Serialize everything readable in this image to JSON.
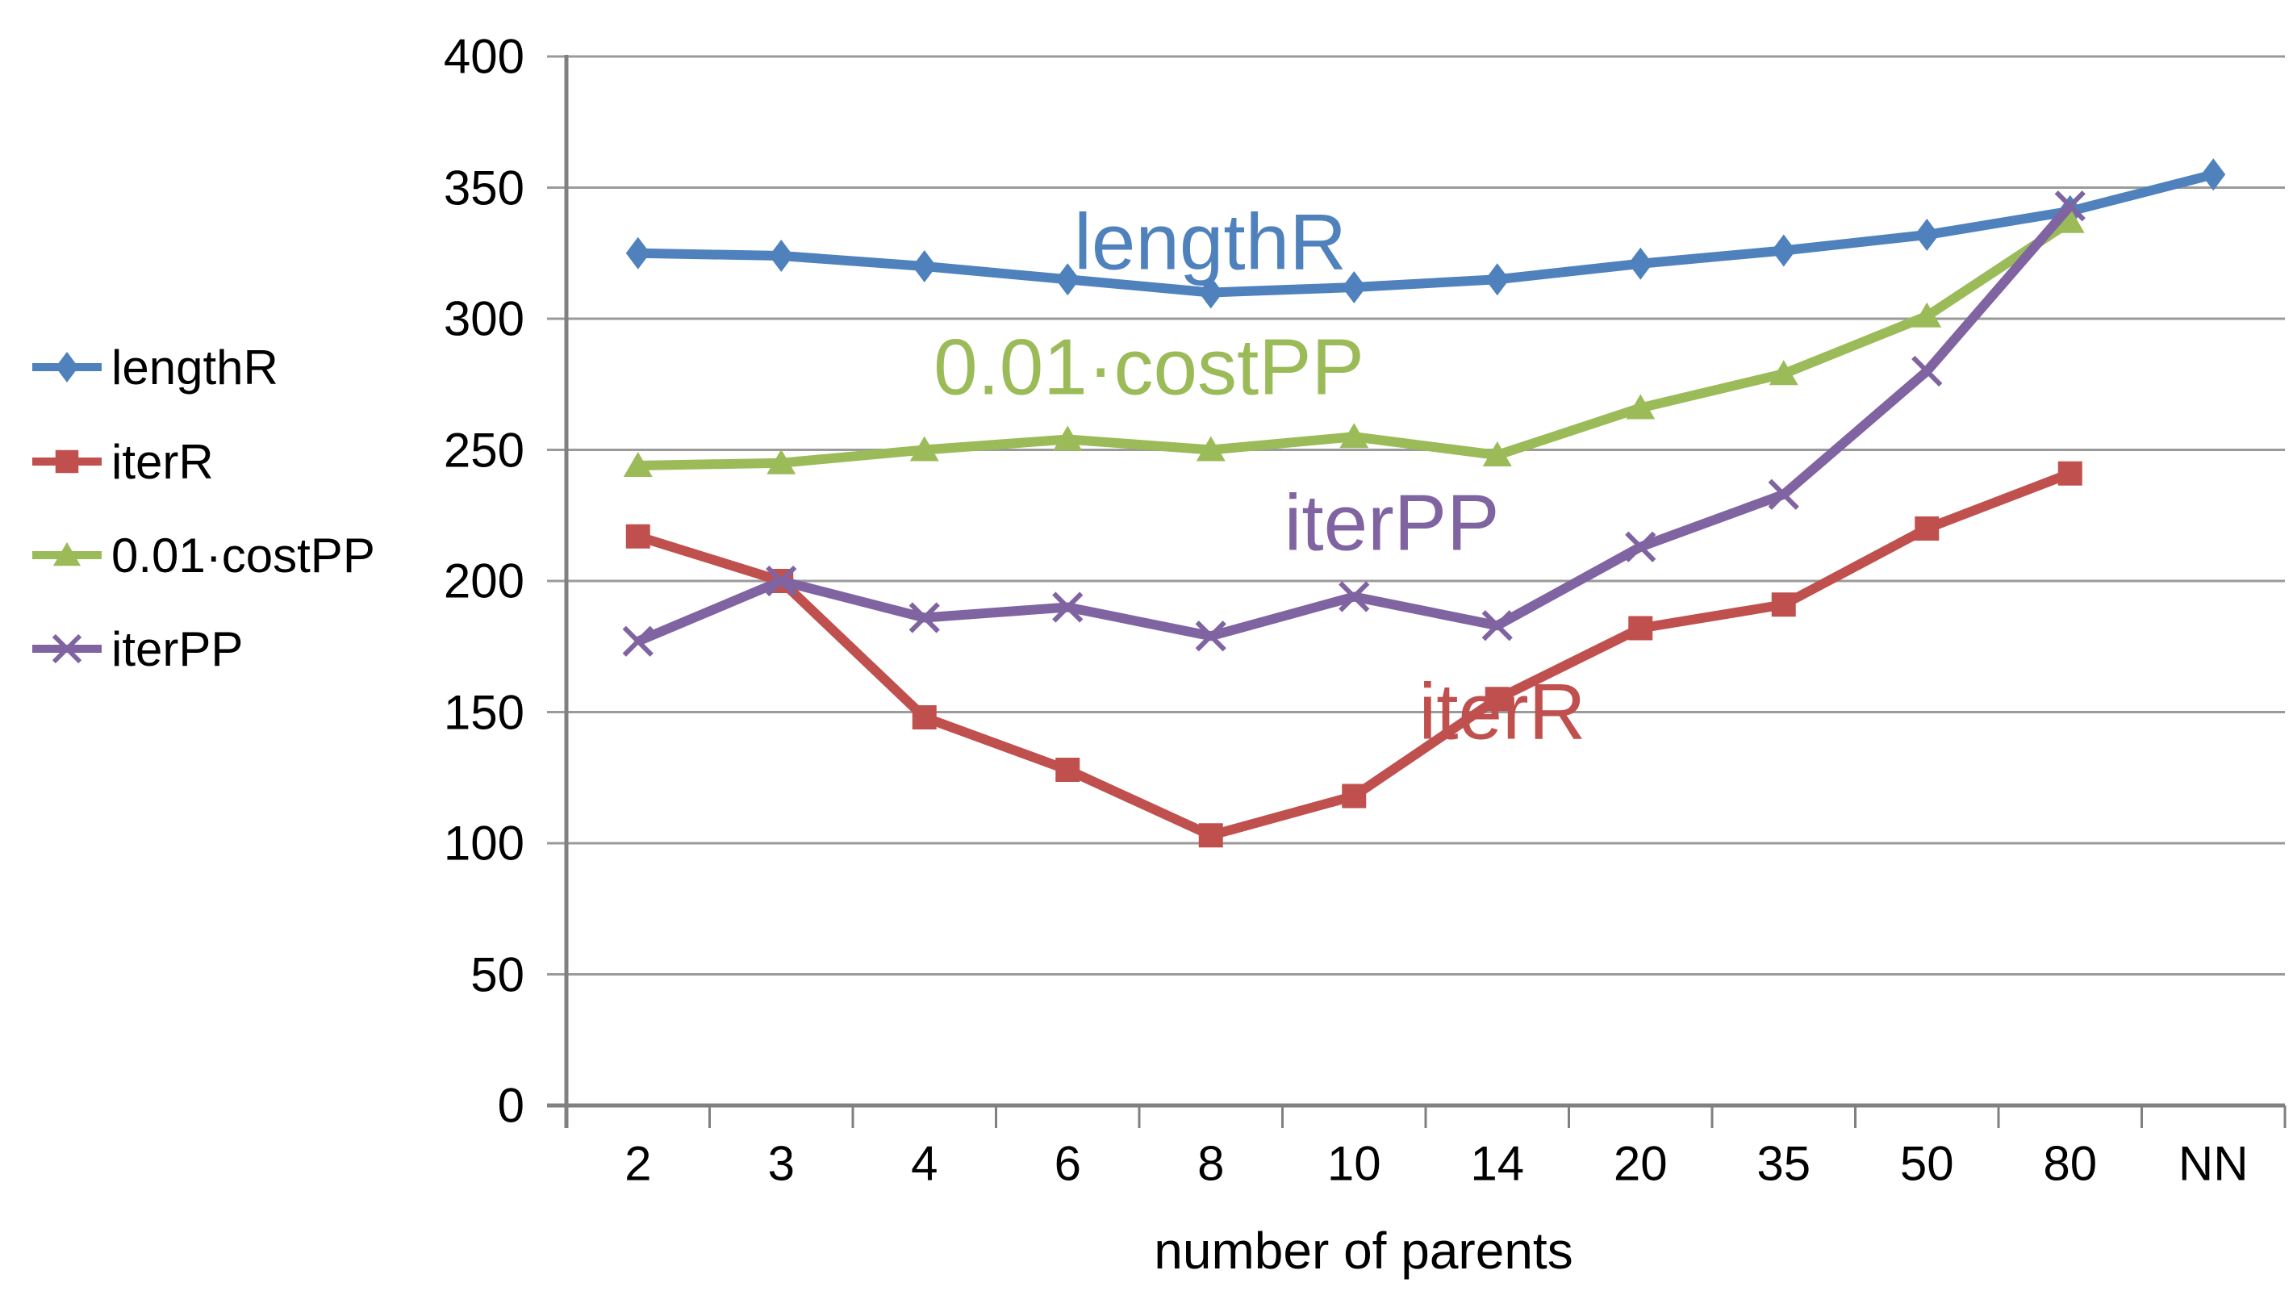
{
  "page": {
    "background": "#ffffff"
  },
  "chart_data": {
    "type": "line",
    "title": "",
    "xlabel": "number of parents",
    "ylabel": "",
    "ylim": [
      0,
      400
    ],
    "ytick_step": 50,
    "y_tick_labels": [
      "400",
      "350",
      "300",
      "250",
      "200",
      "150",
      "100",
      "50",
      "0"
    ],
    "categories": [
      "2",
      "3",
      "4",
      "6",
      "8",
      "10",
      "14",
      "20",
      "35",
      "50",
      "80",
      "NN"
    ],
    "grid": true,
    "legend_position": "left",
    "axis_color": "#808080",
    "grid_color": "#9a9a9a",
    "text_color": "#000000",
    "series": [
      {
        "name": "lengthR",
        "color": "#4F81BD",
        "marker": "diamond",
        "values": [
          325,
          324,
          320,
          315,
          310,
          312,
          315,
          321,
          326,
          332,
          341,
          355
        ]
      },
      {
        "name": "iterR",
        "color": "#C0504D",
        "marker": "square",
        "values": [
          217,
          200,
          148,
          128,
          103,
          118,
          155,
          182,
          191,
          220,
          241,
          null
        ]
      },
      {
        "name": "0.01·costPP",
        "color": "#9BBB59",
        "marker": "triangle",
        "values": [
          244,
          245,
          250,
          254,
          250,
          255,
          248,
          266,
          279,
          301,
          337,
          null
        ]
      },
      {
        "name": "iterPP",
        "color": "#8064A2",
        "marker": "x",
        "values": [
          177,
          200,
          186,
          190,
          179,
          194,
          183,
          213,
          233,
          280,
          343,
          null
        ]
      }
    ],
    "inline_labels": [
      {
        "series": "lengthR",
        "text": "lengthR"
      },
      {
        "series": "iterR",
        "text": "iterR"
      },
      {
        "series": "0.01·costPP",
        "text": "0.01·costPP"
      },
      {
        "series": "iterPP",
        "text": "iterPP"
      }
    ]
  }
}
